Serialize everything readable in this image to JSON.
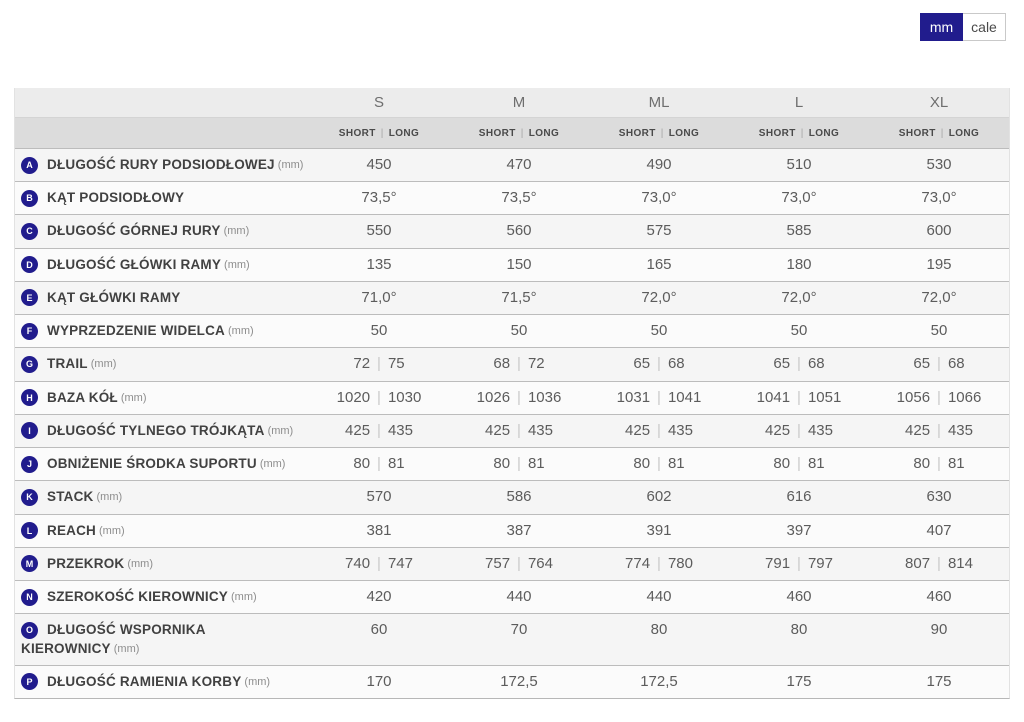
{
  "unit_toggle": {
    "options": [
      {
        "label": "mm",
        "active": true
      },
      {
        "label": "cale",
        "active": false
      }
    ]
  },
  "colors": {
    "accent_navy": "#211c8d",
    "size_header_bg": "#ececec",
    "variant_header_bg": "#dcdcdc",
    "row_odd_bg": "#f5f5f5",
    "row_even_bg": "#fbfbfb",
    "row_border": "#bcbcbc"
  },
  "table": {
    "sizes": [
      "S",
      "M",
      "ML",
      "L",
      "XL"
    ],
    "variant_labels": [
      "SHORT",
      "LONG"
    ],
    "rows": [
      {
        "letter": "A",
        "label": "DŁUGOŚĆ RURY PODSIODŁOWEJ",
        "unit": "(mm)",
        "cells": [
          [
            "450"
          ],
          [
            "470"
          ],
          [
            "490"
          ],
          [
            "510"
          ],
          [
            "530"
          ]
        ]
      },
      {
        "letter": "B",
        "label": "KĄT PODSIODŁOWY",
        "unit": "",
        "cells": [
          [
            "73,5°"
          ],
          [
            "73,5°"
          ],
          [
            "73,0°"
          ],
          [
            "73,0°"
          ],
          [
            "73,0°"
          ]
        ]
      },
      {
        "letter": "C",
        "label": "DŁUGOŚĆ GÓRNEJ RURY",
        "unit": "(mm)",
        "cells": [
          [
            "550"
          ],
          [
            "560"
          ],
          [
            "575"
          ],
          [
            "585"
          ],
          [
            "600"
          ]
        ]
      },
      {
        "letter": "D",
        "label": "DŁUGOŚĆ GŁÓWKI RAMY",
        "unit": "(mm)",
        "cells": [
          [
            "135"
          ],
          [
            "150"
          ],
          [
            "165"
          ],
          [
            "180"
          ],
          [
            "195"
          ]
        ]
      },
      {
        "letter": "E",
        "label": "KĄT GŁÓWKI RAMY",
        "unit": "",
        "cells": [
          [
            "71,0°"
          ],
          [
            "71,5°"
          ],
          [
            "72,0°"
          ],
          [
            "72,0°"
          ],
          [
            "72,0°"
          ]
        ]
      },
      {
        "letter": "F",
        "label": "WYPRZEDZENIE WIDELCA",
        "unit": "(mm)",
        "cells": [
          [
            "50"
          ],
          [
            "50"
          ],
          [
            "50"
          ],
          [
            "50"
          ],
          [
            "50"
          ]
        ]
      },
      {
        "letter": "G",
        "label": "TRAIL",
        "unit": "(mm)",
        "cells": [
          [
            "72",
            "75"
          ],
          [
            "68",
            "72"
          ],
          [
            "65",
            "68"
          ],
          [
            "65",
            "68"
          ],
          [
            "65",
            "68"
          ]
        ]
      },
      {
        "letter": "H",
        "label": "BAZA KÓŁ",
        "unit": "(mm)",
        "cells": [
          [
            "1020",
            "1030"
          ],
          [
            "1026",
            "1036"
          ],
          [
            "1031",
            "1041"
          ],
          [
            "1041",
            "1051"
          ],
          [
            "1056",
            "1066"
          ]
        ]
      },
      {
        "letter": "I",
        "label": "DŁUGOŚĆ TYLNEGO TRÓJKĄTA",
        "unit": "(mm)",
        "cells": [
          [
            "425",
            "435"
          ],
          [
            "425",
            "435"
          ],
          [
            "425",
            "435"
          ],
          [
            "425",
            "435"
          ],
          [
            "425",
            "435"
          ]
        ]
      },
      {
        "letter": "J",
        "label": "OBNIŻENIE ŚRODKA SUPORTU",
        "unit": "(mm)",
        "cells": [
          [
            "80",
            "81"
          ],
          [
            "80",
            "81"
          ],
          [
            "80",
            "81"
          ],
          [
            "80",
            "81"
          ],
          [
            "80",
            "81"
          ]
        ]
      },
      {
        "letter": "K",
        "label": "STACK",
        "unit": "(mm)",
        "cells": [
          [
            "570"
          ],
          [
            "586"
          ],
          [
            "602"
          ],
          [
            "616"
          ],
          [
            "630"
          ]
        ]
      },
      {
        "letter": "L",
        "label": "REACH",
        "unit": "(mm)",
        "cells": [
          [
            "381"
          ],
          [
            "387"
          ],
          [
            "391"
          ],
          [
            "397"
          ],
          [
            "407"
          ]
        ]
      },
      {
        "letter": "M",
        "label": "PRZEKROK",
        "unit": "(mm)",
        "cells": [
          [
            "740",
            "747"
          ],
          [
            "757",
            "764"
          ],
          [
            "774",
            "780"
          ],
          [
            "791",
            "797"
          ],
          [
            "807",
            "814"
          ]
        ]
      },
      {
        "letter": "N",
        "label": "SZEROKOŚĆ KIEROWNICY",
        "unit": "(mm)",
        "cells": [
          [
            "420"
          ],
          [
            "440"
          ],
          [
            "440"
          ],
          [
            "460"
          ],
          [
            "460"
          ]
        ]
      },
      {
        "letter": "O",
        "label": "DŁUGOŚĆ WSPORNIKA KIEROWNICY",
        "unit": "(mm)",
        "cells": [
          [
            "60"
          ],
          [
            "70"
          ],
          [
            "80"
          ],
          [
            "80"
          ],
          [
            "90"
          ]
        ]
      },
      {
        "letter": "P",
        "label": "DŁUGOŚĆ RAMIENIA KORBY",
        "unit": "(mm)",
        "cells": [
          [
            "170"
          ],
          [
            "172,5"
          ],
          [
            "172,5"
          ],
          [
            "175"
          ],
          [
            "175"
          ]
        ]
      }
    ]
  }
}
